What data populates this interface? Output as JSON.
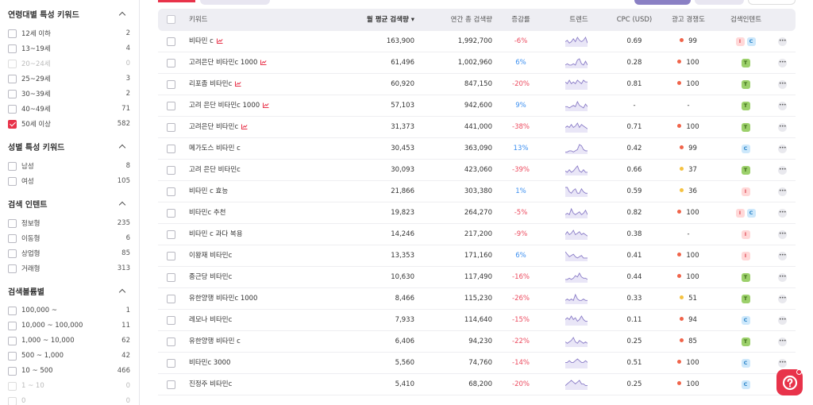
{
  "sidebar": {
    "sections": [
      {
        "title": "연령대별 특성 키워드",
        "items": [
          {
            "label": "12세 이하",
            "count": "2",
            "checked": false,
            "disabled": false
          },
          {
            "label": "13~19세",
            "count": "4",
            "checked": false,
            "disabled": false
          },
          {
            "label": "20~24세",
            "count": "0",
            "checked": false,
            "disabled": true
          },
          {
            "label": "25~29세",
            "count": "3",
            "checked": false,
            "disabled": false
          },
          {
            "label": "30~39세",
            "count": "2",
            "checked": false,
            "disabled": false
          },
          {
            "label": "40~49세",
            "count": "71",
            "checked": false,
            "disabled": false
          },
          {
            "label": "50세 이상",
            "count": "582",
            "checked": true,
            "disabled": false
          }
        ]
      },
      {
        "title": "성별 특성 키워드",
        "items": [
          {
            "label": "남성",
            "count": "8",
            "checked": false,
            "disabled": false
          },
          {
            "label": "여성",
            "count": "105",
            "checked": false,
            "disabled": false
          }
        ]
      },
      {
        "title": "검색 인텐트",
        "items": [
          {
            "label": "정보형",
            "count": "235",
            "checked": false,
            "disabled": false
          },
          {
            "label": "이동형",
            "count": "6",
            "checked": false,
            "disabled": false
          },
          {
            "label": "상업형",
            "count": "85",
            "checked": false,
            "disabled": false
          },
          {
            "label": "거래형",
            "count": "313",
            "checked": false,
            "disabled": false
          }
        ]
      },
      {
        "title": "검색볼륨별",
        "items": [
          {
            "label": "100,000 ~",
            "count": "1",
            "checked": false,
            "disabled": false
          },
          {
            "label": "10,000 ~ 100,000",
            "count": "11",
            "checked": false,
            "disabled": false
          },
          {
            "label": "1,000 ~ 10,000",
            "count": "62",
            "checked": false,
            "disabled": false
          },
          {
            "label": "500 ~ 1,000",
            "count": "42",
            "checked": false,
            "disabled": false
          },
          {
            "label": "10 ~ 500",
            "count": "466",
            "checked": false,
            "disabled": false
          },
          {
            "label": "1 ~ 10",
            "count": "0",
            "checked": false,
            "disabled": true
          },
          {
            "label": "0",
            "count": "0",
            "checked": false,
            "disabled": true
          }
        ]
      }
    ]
  },
  "table": {
    "headers": {
      "keyword": "키워드",
      "monthly": "월 평균 검색량 ▾",
      "yearly": "연간 총 검색량",
      "change": "증감률",
      "trend": "트렌드",
      "cpc": "CPC (USD)",
      "competition": "광고 경쟁도",
      "intent": "검색인텐트"
    },
    "rows": [
      {
        "keyword": "비타민 c",
        "trend_icon": true,
        "monthly": "163,900",
        "yearly": "1,992,700",
        "change": "-6%",
        "cpc": "0.69",
        "comp": "99",
        "comp_color": "#f0644a",
        "intents": [
          "I",
          "C"
        ],
        "spark": [
          3,
          4,
          2,
          3,
          5,
          3,
          6,
          4,
          3,
          4,
          6,
          2
        ]
      },
      {
        "keyword": "고려은단 비타민c 1000",
        "trend_icon": true,
        "monthly": "61,496",
        "yearly": "1,002,960",
        "change": "6%",
        "cpc": "0.28",
        "comp": "100",
        "comp_color": "#f0644a",
        "intents": [
          "T"
        ],
        "spark": [
          2,
          3,
          2,
          2,
          3,
          2,
          6,
          7,
          3,
          2,
          5,
          2
        ]
      },
      {
        "keyword": "리포좀 비타민c",
        "trend_icon": true,
        "monthly": "60,920",
        "yearly": "847,150",
        "change": "-20%",
        "cpc": "0.81",
        "comp": "100",
        "comp_color": "#f0644a",
        "intents": [
          "T"
        ],
        "spark": [
          4,
          3,
          5,
          3,
          4,
          3,
          5,
          4,
          3,
          5,
          4,
          4
        ]
      },
      {
        "keyword": "고려 은단 비타민c 1000",
        "trend_icon": true,
        "monthly": "57,103",
        "yearly": "942,600",
        "change": "9%",
        "cpc": "-",
        "comp": "-",
        "comp_color": "",
        "intents": [
          "T"
        ],
        "spark": [
          3,
          3,
          2,
          3,
          4,
          3,
          7,
          4,
          3,
          2,
          5,
          3
        ]
      },
      {
        "keyword": "고려은단 비타민c",
        "trend_icon": true,
        "monthly": "31,373",
        "yearly": "441,000",
        "change": "-38%",
        "cpc": "0.71",
        "comp": "100",
        "comp_color": "#f0644a",
        "intents": [
          "T"
        ],
        "spark": [
          3,
          4,
          3,
          5,
          3,
          4,
          6,
          3,
          5,
          4,
          3,
          2
        ]
      },
      {
        "keyword": "메가도스 비타민 c",
        "trend_icon": false,
        "monthly": "30,453",
        "yearly": "363,090",
        "change": "13%",
        "cpc": "0.42",
        "comp": "99",
        "comp_color": "#f0644a",
        "intents": [
          "C"
        ],
        "spark": [
          1,
          1,
          2,
          2,
          1,
          2,
          3,
          7,
          6,
          3,
          2,
          2
        ]
      },
      {
        "keyword": "고려 은단 비타민c",
        "trend_icon": false,
        "monthly": "30,093",
        "yearly": "423,060",
        "change": "-39%",
        "cpc": "0.66",
        "comp": "37",
        "comp_color": "#f5c242",
        "intents": [
          "T"
        ],
        "spark": [
          3,
          2,
          4,
          2,
          3,
          5,
          7,
          3,
          2,
          4,
          2,
          2
        ]
      },
      {
        "keyword": "비타민 c 효능",
        "trend_icon": false,
        "monthly": "21,866",
        "yearly": "303,380",
        "change": "1%",
        "cpc": "0.59",
        "comp": "36",
        "comp_color": "#f5c242",
        "intents": [
          "I"
        ],
        "spark": [
          6,
          6,
          3,
          2,
          4,
          5,
          2,
          2,
          5,
          3,
          2,
          2
        ]
      },
      {
        "keyword": "비타민c 추천",
        "trend_icon": false,
        "monthly": "19,823",
        "yearly": "264,270",
        "change": "-5%",
        "cpc": "0.82",
        "comp": "100",
        "comp_color": "#f0644a",
        "intents": [
          "I",
          "C"
        ],
        "spark": [
          2,
          3,
          2,
          6,
          3,
          2,
          3,
          4,
          2,
          3,
          5,
          2
        ]
      },
      {
        "keyword": "비타민 c 과다 복용",
        "trend_icon": false,
        "monthly": "14,246",
        "yearly": "217,200",
        "change": "-9%",
        "cpc": "0.38",
        "comp": "-",
        "comp_color": "",
        "intents": [
          "I"
        ],
        "spark": [
          3,
          5,
          3,
          4,
          6,
          3,
          4,
          5,
          3,
          4,
          3,
          2
        ]
      },
      {
        "keyword": "이왕재 비타민c",
        "trend_icon": false,
        "monthly": "13,353",
        "yearly": "171,160",
        "change": "6%",
        "cpc": "0.41",
        "comp": "100",
        "comp_color": "#f0644a",
        "intents": [
          "I"
        ],
        "spark": [
          7,
          5,
          3,
          4,
          5,
          3,
          2,
          3,
          4,
          2,
          2,
          2
        ]
      },
      {
        "keyword": "종근당 비타민c",
        "trend_icon": false,
        "monthly": "10,630",
        "yearly": "117,490",
        "change": "-16%",
        "cpc": "0.44",
        "comp": "100",
        "comp_color": "#f0644a",
        "intents": [
          "T"
        ],
        "spark": [
          2,
          2,
          3,
          2,
          3,
          5,
          4,
          7,
          4,
          3,
          3,
          2
        ]
      },
      {
        "keyword": "유한양행 비타민c 1000",
        "trend_icon": false,
        "monthly": "8,466",
        "yearly": "115,230",
        "change": "-26%",
        "cpc": "0.33",
        "comp": "51",
        "comp_color": "#f5c242",
        "intents": [
          "T"
        ],
        "spark": [
          2,
          3,
          2,
          3,
          2,
          6,
          3,
          2,
          2,
          3,
          2,
          2
        ]
      },
      {
        "keyword": "레모나 비타민c",
        "trend_icon": false,
        "monthly": "7,933",
        "yearly": "114,640",
        "change": "-15%",
        "cpc": "0.11",
        "comp": "94",
        "comp_color": "#f0644a",
        "intents": [
          "C"
        ],
        "spark": [
          3,
          4,
          3,
          5,
          3,
          4,
          2,
          3,
          5,
          3,
          2,
          2
        ]
      },
      {
        "keyword": "유한양행 비타민 c",
        "trend_icon": false,
        "monthly": "6,406",
        "yearly": "94,230",
        "change": "-22%",
        "cpc": "0.25",
        "comp": "85",
        "comp_color": "#f0644a",
        "intents": [
          "T"
        ],
        "spark": [
          3,
          2,
          3,
          4,
          6,
          3,
          2,
          4,
          3,
          2,
          3,
          2
        ]
      },
      {
        "keyword": "비타민c 3000",
        "trend_icon": false,
        "monthly": "5,560",
        "yearly": "74,760",
        "change": "-14%",
        "cpc": "0.51",
        "comp": "100",
        "comp_color": "#f0644a",
        "intents": [
          "C"
        ],
        "spark": [
          3,
          3,
          4,
          3,
          3,
          4,
          5,
          4,
          3,
          3,
          4,
          3
        ]
      },
      {
        "keyword": "진정주 비타민c",
        "trend_icon": false,
        "monthly": "5,410",
        "yearly": "68,200",
        "change": "-20%",
        "cpc": "0.25",
        "comp": "100",
        "comp_color": "#f0644a",
        "intents": [
          "C"
        ],
        "spark": [
          2,
          3,
          4,
          5,
          4,
          3,
          4,
          5,
          3,
          3,
          2,
          2
        ]
      }
    ]
  },
  "colors": {
    "accent": "#e8334a",
    "positive": "#3a8ef0",
    "negative": "#ec4a5e",
    "spark_fill": "#e9e6f7",
    "spark_line": "#8a7cc7"
  },
  "fab": {
    "icon": "help-icon"
  }
}
